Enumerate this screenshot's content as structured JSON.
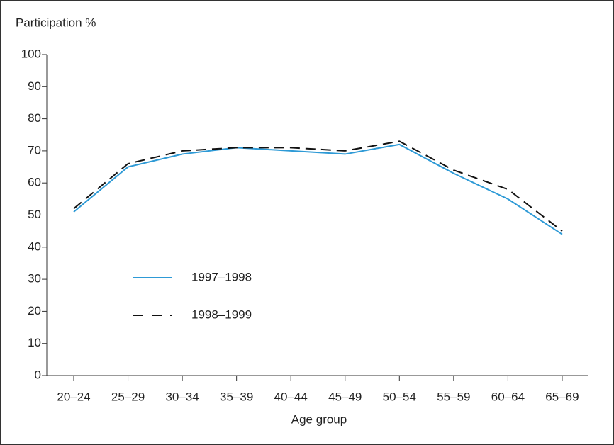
{
  "chart_data": {
    "type": "line",
    "y_label": "Participation %",
    "x_label": "Age group",
    "categories": [
      "20–24",
      "25–29",
      "30–34",
      "35–39",
      "40–44",
      "45–49",
      "50–54",
      "55–59",
      "60–64",
      "65–69"
    ],
    "series": [
      {
        "name": "1997–1998",
        "color": "#2e9ad6",
        "dashed": false,
        "values": [
          51,
          65,
          69,
          71,
          70,
          69,
          72,
          63,
          55,
          44
        ]
      },
      {
        "name": "1998–1999",
        "color": "#111111",
        "dashed": true,
        "values": [
          52,
          66,
          70,
          71,
          71,
          70,
          73,
          64,
          58,
          45
        ]
      }
    ],
    "ylim": [
      0,
      100
    ],
    "yticks": [
      0,
      10,
      20,
      30,
      40,
      50,
      60,
      70,
      80,
      90,
      100
    ],
    "grid": false
  }
}
